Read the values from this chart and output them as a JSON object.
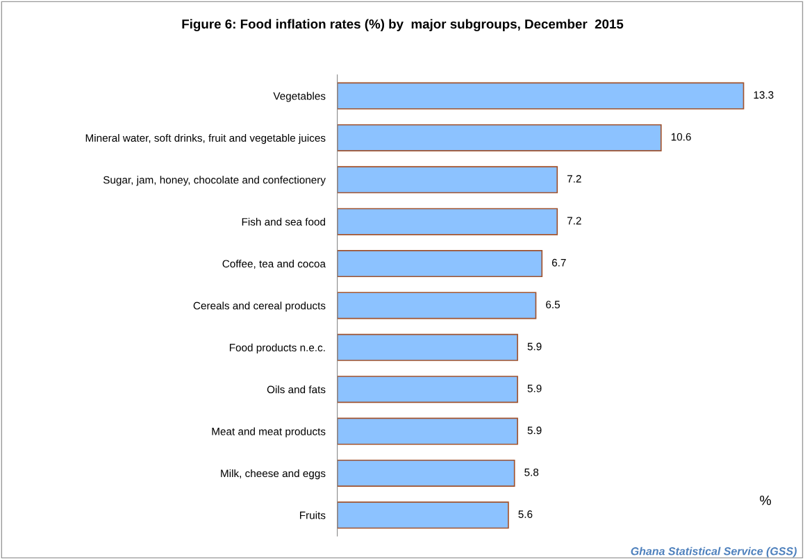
{
  "chart_data": {
    "type": "bar",
    "orientation": "horizontal",
    "title": "Figure 6: Food inflation rates (%) by  major subgroups, December  2015",
    "categories": [
      "Vegetables",
      "Mineral water, soft drinks, fruit and vegetable juices",
      "Sugar, jam, honey, chocolate and confectionery",
      "Fish and sea food",
      "Coffee, tea and cocoa",
      "Cereals and cereal products",
      "Food products n.e.c.",
      "Oils and fats",
      "Meat and meat products",
      "Milk, cheese and eggs",
      "Fruits"
    ],
    "values": [
      13.3,
      10.6,
      7.2,
      7.2,
      6.7,
      6.5,
      5.9,
      5.9,
      5.9,
      5.8,
      5.6
    ],
    "color": "#8cc2ff",
    "data_labels": true,
    "grid": false,
    "legend": false,
    "tick_labels": "y",
    "annotations": [
      "%",
      "Ghana Statistical Service (GSS)"
    ]
  }
}
